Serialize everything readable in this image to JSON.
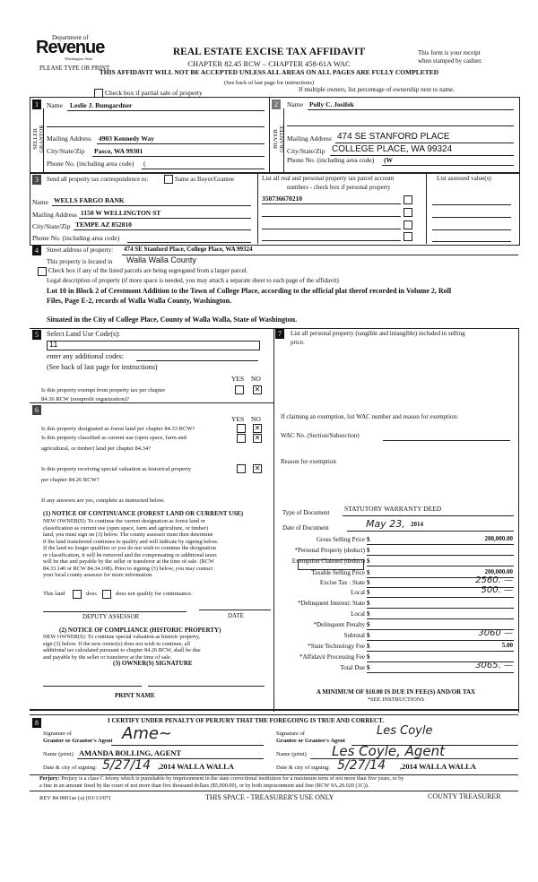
{
  "header": {
    "logo_top": "Department of",
    "logo_main": "Revenue",
    "logo_sub": "Washington State",
    "please": "PLEASE TYPE OR PRINT",
    "title": "REAL ESTATE EXCISE TAX AFFIDAVIT",
    "chapter": "CHAPTER 82.45 RCW – CHAPTER 458-61A WAC",
    "warning": "THIS AFFIDAVIT WILL NOT BE ACCEPTED UNLESS ALL AREAS ON ALL PAGES ARE FULLY COMPLETED",
    "see_back": "(See back of last page for instructions)",
    "receipt1": "This form is your receipt",
    "receipt2": "when stamped by cashier.",
    "partial_sale": "Check box if partial sale of property",
    "multiple_owners": "If multiple owners, list percentage of ownership next to name."
  },
  "seller": {
    "num": "1",
    "side": "SELLER GRANTOR",
    "name_label": "Name",
    "name": "Leslie J. Bumgardner",
    "addr_label": "Mailing Address",
    "addr": "4903 Kennedy Way",
    "city_label": "City/State/Zip",
    "city": "Pasco, WA  99301",
    "phone_label": "Phone No. (including area code)",
    "phone": "("
  },
  "buyer": {
    "num": "2",
    "side": "BUYER GRANTEE",
    "name_label": "Name",
    "name": "Polly C. Josifek",
    "addr_label": "Mailing Address",
    "addr": "474 SE STANFORD PLACE",
    "city_label": "City/State/Zip",
    "city": "COLLEGE PLACE, WA  99324",
    "phone_label": "Phone No. (including area code)",
    "phone": "(W"
  },
  "sec3": {
    "num": "3",
    "send_label": "Send all property tax correspondence to:",
    "same_as": "Same as Buyer/Grantee",
    "name_label": "Name",
    "name": "WELLS FARGO  BANK",
    "addr_label": "Mailing Address",
    "addr": "1150 W WELLINGTON  ST",
    "city_label": "City/State/Zip",
    "city": "TEMPE AZ  852810",
    "phone_label": "Phone No. (including area code)",
    "parcel_header": "List all real and personal property tax parcel account",
    "parcel_header2": "numbers - check box if personal property",
    "parcels": [
      "350736670210",
      "",
      "",
      ""
    ],
    "assessed_header": "List assessed value(s)"
  },
  "sec4": {
    "num": "4",
    "street_label": "Street address of property:",
    "street": "474 SE Stanford Place, College Place, WA  99324",
    "located_label": "This property is located in",
    "county": "Walla Walla County",
    "segregated": "Check box if any of the listed parcels are being segregated from a larger parcel.",
    "legal_label": "Legal description of property (if more space is needed, you may attach a separate sheet to each page of the affidavit)",
    "legal1": "Lot 10 in Block 2 of Crestmont Addition to the Town of College Place, according to the official plat therof recorded in Volume 2, Roll",
    "legal2": "Files, Page E-2, records of Walla Walla County, Washington.",
    "legal3": "Situated in the City of College Place, County of Walla Walla, State of Washington."
  },
  "sec5": {
    "num": "5",
    "land_use_label": "Select Land Use Code(s):",
    "land_use": "11",
    "additional": "enter any additional codes:",
    "see_back": "(See back of last page for instructions)",
    "yes": "YES",
    "no": "NO",
    "q1a": "Is this property exempt from property tax per chapter",
    "q1b": "84.36 RCW (nonprofit organization)?",
    "q1_answer": "NO"
  },
  "sec6": {
    "num": "6",
    "yes": "YES",
    "no": "NO",
    "q1": "Is this property designated as forest land per chapter 84.33 RCW?",
    "q2a": "Is this property classified as current use (open space, farm and",
    "q2b": "agricultural, or timber) land per chapter 84.34?",
    "q3a": "Is this property receiving special valuation as historical property",
    "q3b": "per chapter 84.26 RCW?",
    "answers": [
      "NO",
      "NO",
      "NO"
    ],
    "if_yes": "If any answers are yes, complete as instructed below.",
    "n1_title": "(1) NOTICE OF CONTINUANCE (FOREST LAND OR CURRENT USE)",
    "n1_lines": [
      "NEW OWNER(S): To continue the current designation as forest land or",
      "classification as current use (open space, farm and agriculture, or timber)",
      "land, you must sign on (3) below. The county assessor must then determine",
      "if the land transferred continues to qualify and will indicate by signing below.",
      "If the land no longer qualifies or you do not wish to continue the designation",
      "or classification, it will be removed and the compensating or additional taxes",
      "will be due and payable by the seller or transferor at the time of sale. (RCW",
      "84.33.140 or RCW 84.34.108). Prior to signing (3) below, you may contact",
      "your local county assessor for more information."
    ],
    "this_land": "This land",
    "does": "does",
    "does_not": "does not  qualify for continuance.",
    "deputy": "DEPUTY ASSESSOR",
    "date": "DATE",
    "n2_title": "(2) NOTICE OF COMPLIANCE (HISTORIC PROPERTY)",
    "n2_lines": [
      "NEW OWNER(S): To continue special valuation as historic property,",
      "sign (3) below. If the new owner(s) does not wish to continue, all",
      "additional tax calculated pursuant to chapter 84.26 RCW, shall be due",
      "and payable by the seller or transferor at the time of sale."
    ],
    "n3_title": "(3) OWNER(S) SIGNATURE",
    "print_name": "PRINT NAME"
  },
  "sec7": {
    "num": "7",
    "personal1": "List all personal property (tangible and intangible) included in selling",
    "personal2": "price.",
    "exemption": "If claiming an exemption, list WAC number and reason for exemption:",
    "wac_label": "WAC No. (Section/Subsection)",
    "reason_label": "Reason for exemption",
    "doc_type_label": "Type of Document",
    "doc_type": "STATUTORY WARRANTY DEED",
    "doc_date_label": "Date of Document",
    "doc_date_hw": "May 23,",
    "doc_year": "2014",
    "lines": [
      {
        "label": "Gross Selling Price",
        "value": "200,000.00"
      },
      {
        "label": "*Personal Property (deduct)",
        "value": ""
      },
      {
        "label": "Exemption Claimed (deduct)",
        "value": ""
      },
      {
        "label": "Taxable Selling Price",
        "value": "200,000.00"
      },
      {
        "label": "Excise Tax : State",
        "value": "2560. —"
      },
      {
        "label": "Local",
        "value": "500. —"
      },
      {
        "label": "*Delinquent Interest:  State",
        "value": ""
      },
      {
        "label": "Local",
        "value": ""
      },
      {
        "label": "*Delinquent Penalty",
        "value": ""
      },
      {
        "label": "Subtotal",
        "value": "3060 —"
      },
      {
        "label": "*State Technology Fee",
        "value": "5.00"
      },
      {
        "label": "*Affidavit Processing Fee",
        "value": ""
      },
      {
        "label": "Total Due",
        "value": "3065. —"
      }
    ],
    "dollar": "$",
    "minimum": "A MINIMUM OF $10.00 IS DUE IN FEE(S) AND/OR TAX",
    "see_instr": "*SEE INSTRUCTIONS"
  },
  "sec8": {
    "num": "8",
    "certify": "I CERTIFY UNDER PENALTY OF PERJURY THAT THE FOREGOING IS TRUE AND CORRECT.",
    "sig_label1": "Signature of",
    "grantor_agent": "Grantor or Grantor's Agent",
    "grantee_agent": "Grantee or Grantee's Agent",
    "name_print_label": "Name (print)",
    "grantor_name": "AMANDA BOLLING, AGENT",
    "grantee_name_hw": "Les Coyle, Agent",
    "date_city_label": "Date & city of signing:",
    "grantor_date_hw": "5/27/14",
    "grantee_date_hw": "5/27/14",
    "city": ",2014 WALLA WALLA",
    "perjury_label": "Perjury:",
    "perjury1": "Perjury is a class C felony which is punishable by imprisonment in the state correctional institution for a maximum term of not more than five years, or by",
    "perjury2": "a fine in an amount fixed by the court of not more than five thousand dollars ($5,000.00), or by both imprisonment and fine (RCW 9A.20.020 (1C))."
  },
  "footer": {
    "form_no": "REV 84 0001ae (a) (03/13/07)",
    "treasurer_use": "THIS SPACE - TREASURER'S USE ONLY",
    "county_treasurer": "COUNTY TREASURER"
  }
}
